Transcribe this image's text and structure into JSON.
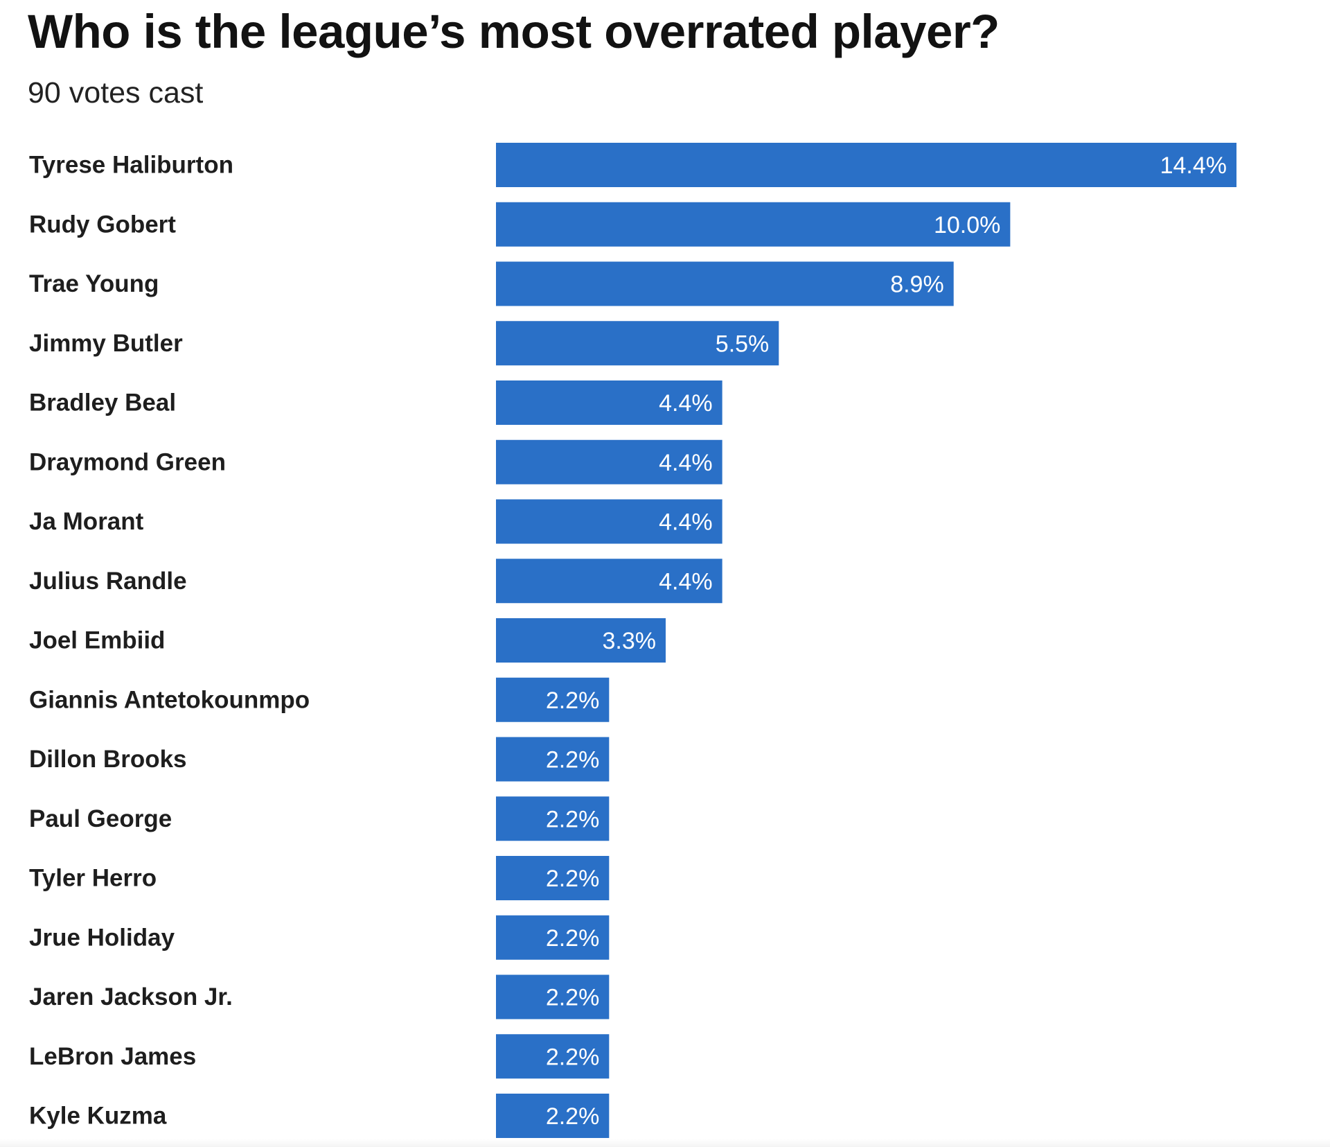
{
  "header": {
    "title": "Who is the league’s most overrated player?",
    "subtitle": "90 votes cast"
  },
  "colors": {
    "bar": "#2a70c7",
    "bar_label": "#ffffff",
    "text": "#1e1e1e"
  },
  "chart_data": {
    "type": "bar",
    "orientation": "horizontal",
    "title": "Who is the league’s most overrated player?",
    "subtitle": "90 votes cast",
    "categories": [
      "Tyrese Haliburton",
      "Rudy Gobert",
      "Trae Young",
      "Jimmy Butler",
      "Bradley Beal",
      "Draymond Green",
      "Ja Morant",
      "Julius Randle",
      "Joel Embiid",
      "Giannis Antetokounmpo",
      "Dillon Brooks",
      "Paul George",
      "Tyler Herro",
      "Jrue Holiday",
      "Jaren Jackson Jr.",
      "LeBron James",
      "Kyle Kuzma"
    ],
    "values": [
      14.4,
      10.0,
      8.9,
      5.5,
      4.4,
      4.4,
      4.4,
      4.4,
      3.3,
      2.2,
      2.2,
      2.2,
      2.2,
      2.2,
      2.2,
      2.2,
      2.2
    ],
    "value_labels": [
      "14.4%",
      "10.0%",
      "8.9%",
      "5.5%",
      "4.4%",
      "4.4%",
      "4.4%",
      "4.4%",
      "3.3%",
      "2.2%",
      "2.2%",
      "2.2%",
      "2.2%",
      "2.2%",
      "2.2%",
      "2.2%",
      "2.2%"
    ],
    "unit": "%",
    "xlim": [
      0,
      14.4
    ],
    "grid": false,
    "legend": "none"
  }
}
